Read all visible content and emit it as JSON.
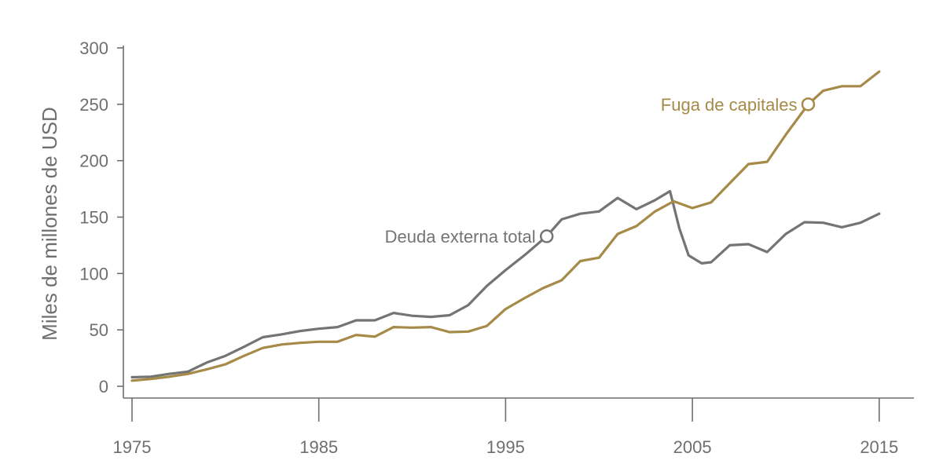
{
  "chart_data": {
    "type": "line",
    "title": "",
    "xlabel": "",
    "ylabel": "Miles de millones de USD",
    "xlim": [
      1975,
      2016.8
    ],
    "ylim": [
      -10,
      300
    ],
    "xticks": [
      1975,
      1985,
      1995,
      2005,
      2015
    ],
    "yticks": [
      0,
      50,
      100,
      150,
      200,
      250,
      300
    ],
    "grid": false,
    "colors": {
      "axis": "#6f6f6f",
      "text": "#6f6f6f"
    },
    "series": [
      {
        "name": "Deuda externa total",
        "color": "#747474",
        "label_at": 1997.2,
        "points": [
          [
            1975,
            8
          ],
          [
            1976,
            8.5
          ],
          [
            1977,
            11
          ],
          [
            1978,
            13
          ],
          [
            1979,
            21
          ],
          [
            1980,
            27
          ],
          [
            1981,
            35
          ],
          [
            1982,
            43.5
          ],
          [
            1983,
            46
          ],
          [
            1984,
            49
          ],
          [
            1985,
            51
          ],
          [
            1986,
            52.5
          ],
          [
            1987,
            58.5
          ],
          [
            1988,
            58.5
          ],
          [
            1989,
            65
          ],
          [
            1990,
            62.5
          ],
          [
            1991,
            61.5
          ],
          [
            1992,
            63
          ],
          [
            1993,
            72
          ],
          [
            1994,
            89
          ],
          [
            1995,
            103
          ],
          [
            1996,
            116
          ],
          [
            1997.2,
            133
          ],
          [
            1998,
            148
          ],
          [
            1999,
            153
          ],
          [
            2000,
            155
          ],
          [
            2001,
            167
          ],
          [
            2002,
            157
          ],
          [
            2003,
            165
          ],
          [
            2003.8,
            173
          ],
          [
            2004.3,
            140
          ],
          [
            2004.8,
            116
          ],
          [
            2005.5,
            109
          ],
          [
            2006,
            110
          ],
          [
            2007,
            125
          ],
          [
            2008,
            126
          ],
          [
            2009,
            119
          ],
          [
            2010,
            135
          ],
          [
            2011,
            145.5
          ],
          [
            2012,
            145
          ],
          [
            2013,
            141
          ],
          [
            2014,
            145
          ],
          [
            2015,
            153
          ]
        ]
      },
      {
        "name": "Fuga de capitales",
        "color": "#a68a48",
        "label_at": 2011.2,
        "points": [
          [
            1975,
            5
          ],
          [
            1976,
            6.5
          ],
          [
            1977,
            8.5
          ],
          [
            1978,
            11
          ],
          [
            1979,
            15
          ],
          [
            1980,
            19.5
          ],
          [
            1981,
            27
          ],
          [
            1982,
            34
          ],
          [
            1983,
            37
          ],
          [
            1984,
            38.5
          ],
          [
            1985,
            39.5
          ],
          [
            1986,
            39.5
          ],
          [
            1987,
            45.5
          ],
          [
            1988,
            44
          ],
          [
            1989,
            52.5
          ],
          [
            1990,
            52
          ],
          [
            1991,
            52.5
          ],
          [
            1992,
            48
          ],
          [
            1993,
            48.5
          ],
          [
            1994,
            53.5
          ],
          [
            1995,
            68.5
          ],
          [
            1996,
            78
          ],
          [
            1997,
            87
          ],
          [
            1998,
            94
          ],
          [
            1999,
            111
          ],
          [
            2000,
            114
          ],
          [
            2001,
            135
          ],
          [
            2002,
            142
          ],
          [
            2003,
            155
          ],
          [
            2004,
            164
          ],
          [
            2005,
            158
          ],
          [
            2006,
            163
          ],
          [
            2007,
            180
          ],
          [
            2008,
            197
          ],
          [
            2009,
            199
          ],
          [
            2010,
            223
          ],
          [
            2011.2,
            250
          ],
          [
            2012,
            262
          ],
          [
            2013,
            266
          ],
          [
            2014,
            266
          ],
          [
            2015,
            279
          ]
        ]
      }
    ]
  }
}
